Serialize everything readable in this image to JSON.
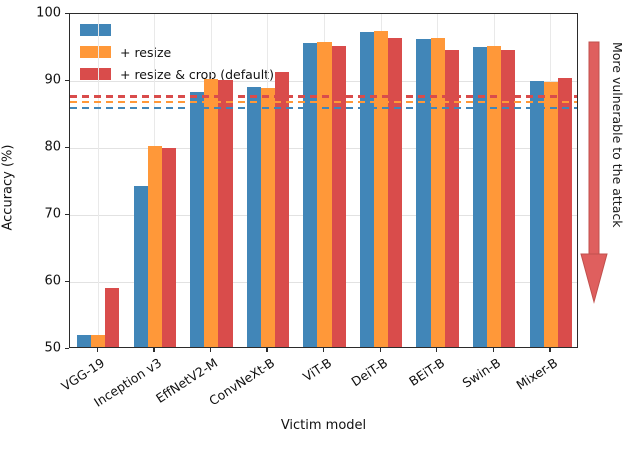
{
  "chart_data": {
    "type": "bar",
    "title": "",
    "xlabel": "Victim model",
    "ylabel": "Accuracy (%)",
    "ylim": [
      50,
      100
    ],
    "yticks": [
      50,
      60,
      70,
      80,
      90,
      100
    ],
    "grid": true,
    "legend_position": "upper left",
    "categories": [
      "VGG-19",
      "Inception v3",
      "EffNetV2-M",
      "ConvNeXt-B",
      "ViT-B",
      "DeiT-B",
      "BEiT-B",
      "Swin-B",
      "Mixer-B"
    ],
    "series": [
      {
        "name": "",
        "color": "#4186b8",
        "values": [
          51.8,
          74.1,
          88.0,
          88.8,
          95.4,
          97.0,
          96.0,
          94.8,
          89.7
        ]
      },
      {
        "name": "+ resize",
        "color": "#ff9839",
        "values": [
          51.8,
          80.0,
          90.0,
          88.7,
          95.5,
          97.2,
          96.1,
          95.0,
          89.5
        ]
      },
      {
        "name": "+ resize & crop (default)",
        "color": "#d94c4b",
        "values": [
          58.8,
          79.7,
          89.9,
          91.0,
          95.0,
          96.1,
          94.3,
          94.3,
          90.1
        ]
      }
    ],
    "hlines": [
      {
        "value": 87.7,
        "color": "#d94c4b",
        "style": "dashed"
      },
      {
        "value": 86.9,
        "color": "#ff9839",
        "style": "dashed"
      },
      {
        "value": 86.0,
        "color": "#4186b8",
        "style": "dashed"
      }
    ],
    "annotation": {
      "text": "More vulnerable to the attack",
      "arrow_color": "#df5f5e",
      "arrow_edge_color": "#c0504d",
      "direction": "down"
    }
  }
}
